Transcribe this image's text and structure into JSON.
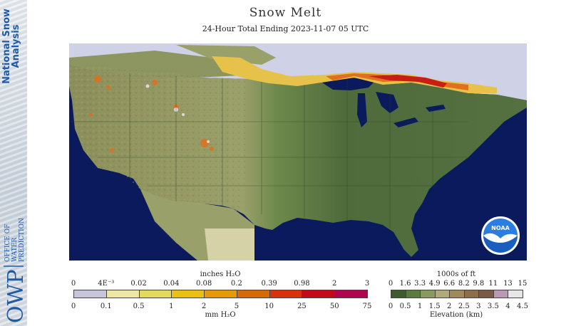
{
  "sidebar": {
    "line1": "National Snow",
    "line2": "Analysis",
    "org_lines": [
      "OFFICE OF",
      "WATER",
      "PREDICTION"
    ],
    "org_acronym": "OWP"
  },
  "header": {
    "title": "Snow Melt",
    "subtitle": "24-Hour Total Ending 2023-11-07 05 UTC"
  },
  "map": {
    "region": "Contiguous United States",
    "logo_text": "NOAA",
    "colors": {
      "ocean": "#0b1a5c",
      "lakes": "#0b1a5c",
      "snow": "#d4d6e8",
      "plains": "#8e9a63",
      "lowland": "#4f6b3c",
      "highland": "#a39d6e",
      "melt_low": "#e6c24a",
      "melt_mid": "#e07020",
      "melt_high": "#c81e16"
    }
  },
  "melt_legend": {
    "top_title": "inches H₂O",
    "top_labels": [
      "0",
      "4E⁻³",
      "0.02",
      "0.04",
      "0.08",
      "0.2",
      "0.39",
      "0.98",
      "2",
      "3"
    ],
    "bottom_labels": [
      "0",
      "0.1",
      "0.5",
      "1",
      "2",
      "5",
      "10",
      "25",
      "50",
      "75"
    ],
    "bottom_title": "mm H₂O",
    "colors": [
      "#c6c6d8",
      "#ece7a4",
      "#e2da5c",
      "#e8c114",
      "#e69a0a",
      "#d76a08",
      "#d6320c",
      "#c20a1a",
      "#b0044e"
    ]
  },
  "elev_legend": {
    "top_title": "1000s of ft",
    "top_labels": [
      "0",
      "1.6",
      "3.3",
      "4.9",
      "6.6",
      "8.2",
      "9.8",
      "11",
      "13",
      "15"
    ],
    "bottom_labels": [
      "0",
      "0.5",
      "1",
      "1.5",
      "2",
      "2.5",
      "3",
      "3.5",
      "4",
      "4.5"
    ],
    "bottom_title": "Elevation (km)",
    "colors": [
      "#3e5a2e",
      "#5d7a3e",
      "#8a9a5c",
      "#b0a978",
      "#a08a5a",
      "#8c6e4a",
      "#7a5a46",
      "#b99ab0",
      "#e6e6e6"
    ]
  }
}
